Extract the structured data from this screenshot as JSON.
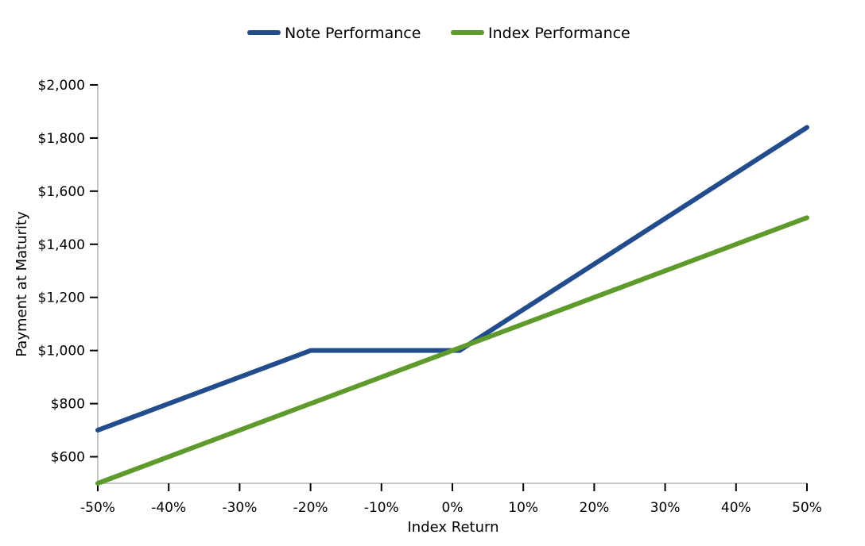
{
  "chart_data": {
    "type": "line",
    "xlabel": "Index Return",
    "ylabel": "Payment at Maturity",
    "xlim": [
      -50,
      50
    ],
    "ylim": [
      500,
      2000
    ],
    "x_ticks": [
      -50,
      -40,
      -30,
      -20,
      -10,
      0,
      10,
      20,
      30,
      40,
      50
    ],
    "x_tick_labels": [
      "-50%",
      "-40%",
      "-30%",
      "-20%",
      "-10%",
      "0%",
      "10%",
      "20%",
      "30%",
      "40%",
      "50%"
    ],
    "y_ticks": [
      600,
      800,
      1000,
      1200,
      1400,
      1600,
      1800,
      2000
    ],
    "y_tick_labels": [
      "$600",
      "$800",
      "$1,000",
      "$1,200",
      "$1,400",
      "$1,600",
      "$1,800",
      "$2,000"
    ],
    "legend_position": "top-center",
    "grid": false,
    "series": [
      {
        "name": "Note Performance",
        "color": "#234c8c",
        "x": [
          -50,
          -20,
          0,
          1,
          50
        ],
        "y": [
          700,
          1000,
          1000,
          1000,
          1840
        ]
      },
      {
        "name": "Index Performance",
        "color": "#5e9a2c",
        "x": [
          -50,
          50
        ],
        "y": [
          500,
          1500
        ]
      }
    ]
  }
}
